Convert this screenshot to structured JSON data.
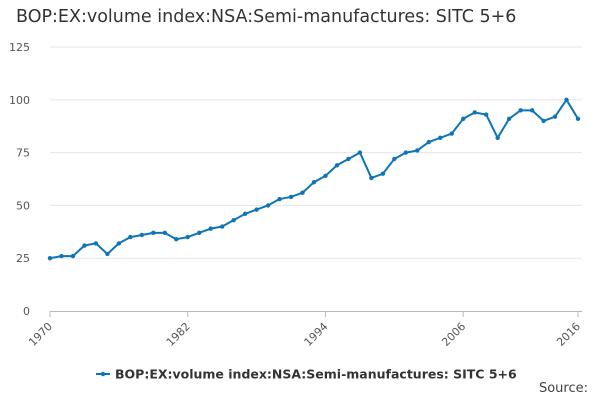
{
  "chart_data": {
    "type": "line",
    "title": "BOP:EX:volume index:NSA:Semi-manufactures: SITC 5+6",
    "xlabel": "",
    "ylabel": "",
    "ylim": [
      0,
      125
    ],
    "xlim": [
      1970,
      2016
    ],
    "yticks": [
      0,
      25,
      50,
      75,
      100,
      125
    ],
    "xticks": [
      1970,
      1982,
      1994,
      2006,
      2016
    ],
    "grid": true,
    "legend_position": "bottom",
    "series": [
      {
        "name": "BOP:EX:volume index:NSA:Semi-manufactures: SITC 5+6",
        "color": "#0f75b7",
        "x": [
          1970,
          1971,
          1972,
          1973,
          1974,
          1975,
          1976,
          1977,
          1978,
          1979,
          1980,
          1981,
          1982,
          1983,
          1984,
          1985,
          1986,
          1987,
          1988,
          1989,
          1990,
          1991,
          1992,
          1993,
          1994,
          1995,
          1996,
          1997,
          1998,
          1999,
          2000,
          2001,
          2002,
          2003,
          2004,
          2005,
          2006,
          2007,
          2008,
          2009,
          2010,
          2011,
          2012,
          2013,
          2014,
          2015,
          2016
        ],
        "values": [
          25,
          26,
          26,
          31,
          32,
          27,
          32,
          35,
          36,
          37,
          37,
          34,
          35,
          37,
          39,
          40,
          43,
          46,
          48,
          50,
          53,
          54,
          56,
          61,
          64,
          69,
          72,
          75,
          63,
          65,
          72,
          75,
          76,
          80,
          82,
          84,
          91,
          94,
          93,
          82,
          91,
          95,
          95,
          90,
          92,
          100,
          91
        ]
      }
    ]
  },
  "source_label": "Source:"
}
